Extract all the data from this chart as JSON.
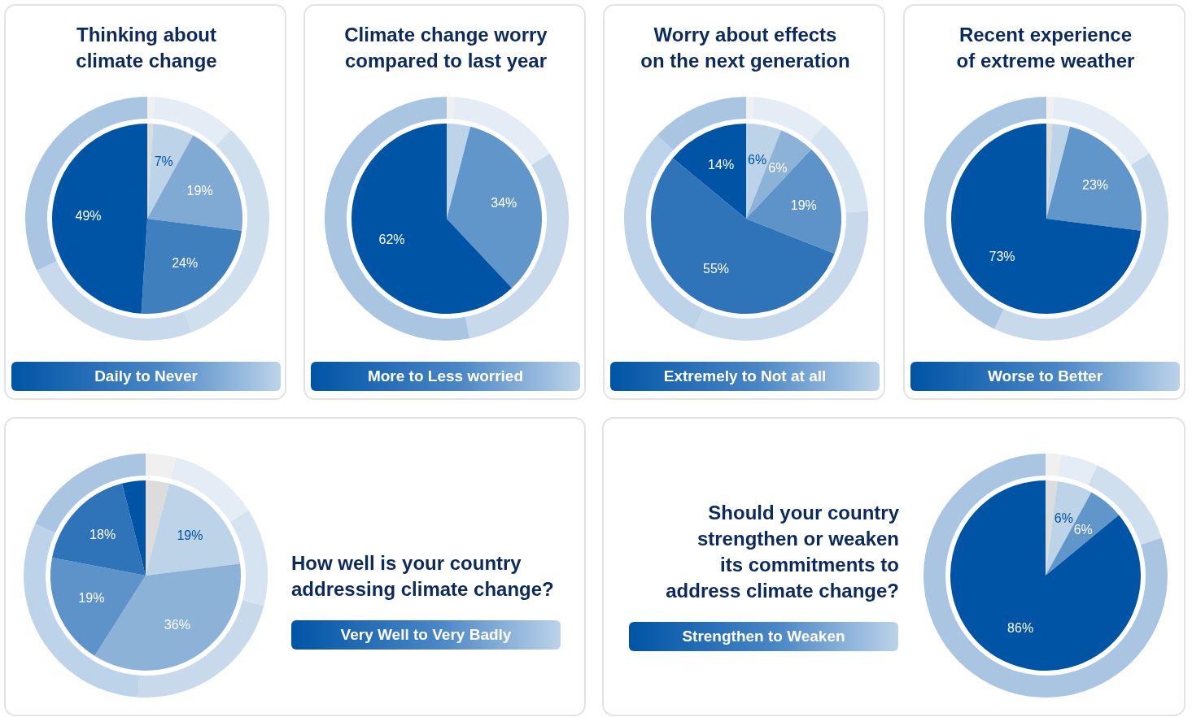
{
  "chart_data": [
    {
      "type": "pie",
      "title": "Thinking about climate change",
      "subtitle": "Daily to Never",
      "series": [
        {
          "values": [
            1,
            7,
            19,
            24,
            49
          ],
          "colors": [
            "#dcdcdc",
            "#bcd3e8",
            "#80a9d4",
            "#3f7fbe",
            "#0054a6"
          ],
          "value_labels": [
            null,
            "7%",
            "19%",
            "24%",
            "49%"
          ]
        },
        {
          "type": "donut",
          "values": [
            1,
            11,
            32,
            24,
            32
          ],
          "colors": [
            "#f0f0f0",
            "#e4edf6",
            "#d0dfee",
            "#c8d9ec",
            "#a9c5e2"
          ]
        }
      ]
    },
    {
      "type": "pie",
      "title": "Climate change worry compared to last year",
      "subtitle": "More to Less worried",
      "series": [
        {
          "values": [
            4,
            34,
            62
          ],
          "colors": [
            "#bcd3e8",
            "#6196ca",
            "#0054a6"
          ],
          "value_labels": [
            null,
            "34%",
            "62%"
          ]
        },
        {
          "type": "donut",
          "values": [
            1,
            15,
            31,
            53
          ],
          "colors": [
            "#f0f0f0",
            "#e4edf6",
            "#c8d9ec",
            "#a9c5e2"
          ]
        }
      ]
    },
    {
      "type": "pie",
      "title": "Worry about effects on the next generation",
      "subtitle": "Extremely to Not at all",
      "series": [
        {
          "values": [
            6,
            6,
            19,
            55,
            14
          ],
          "colors": [
            "#bcd3e8",
            "#8db2d8",
            "#5d93c8",
            "#2f73b8",
            "#0054a6"
          ],
          "value_labels": [
            "6%",
            "6%",
            "19%",
            "55%",
            "14%"
          ]
        },
        {
          "type": "donut",
          "values": [
            1,
            10,
            13,
            33,
            30,
            13
          ],
          "colors": [
            "#f0f0f0",
            "#e4edf6",
            "#d6e3f1",
            "#c8d9ec",
            "#bdd3e9",
            "#a9c5e2"
          ]
        }
      ]
    },
    {
      "type": "pie",
      "title": "Recent experience of extreme weather",
      "subtitle": "Worse to Better",
      "series": [
        {
          "values": [
            1,
            3,
            23,
            73
          ],
          "colors": [
            "#dcdcdc",
            "#bcd3e8",
            "#6196ca",
            "#0054a6"
          ],
          "value_labels": [
            null,
            null,
            "23%",
            "73%"
          ]
        },
        {
          "type": "donut",
          "values": [
            1,
            15,
            41,
            43
          ],
          "colors": [
            "#f0f0f0",
            "#e4edf6",
            "#c8d9ec",
            "#a9c5e2"
          ]
        }
      ]
    },
    {
      "type": "pie",
      "title": "How well is your country addressing climate change?",
      "subtitle": "Very Well to Very Badly",
      "series": [
        {
          "values": [
            4,
            19,
            36,
            19,
            18,
            4
          ],
          "colors": [
            "#dcdcdc",
            "#bcd3e8",
            "#8db2d8",
            "#5d93c8",
            "#2f73b8",
            "#0054a6"
          ],
          "value_labels": [
            null,
            "19%",
            "36%",
            "19%",
            "18%",
            null
          ]
        },
        {
          "type": "donut",
          "values": [
            4,
            12,
            13,
            22,
            31,
            18
          ],
          "colors": [
            "#f0f0f0",
            "#e4edf6",
            "#d6e3f1",
            "#c8d9ec",
            "#bdd3e9",
            "#a9c5e2"
          ]
        }
      ]
    },
    {
      "type": "pie",
      "title": "Should your country strengthen or weaken its commitments to address climate change?",
      "subtitle": "Strengthen to Weaken",
      "series": [
        {
          "values": [
            2,
            6,
            6,
            86
          ],
          "colors": [
            "#dcdcdc",
            "#bcd3e8",
            "#6196ca",
            "#0054a6"
          ],
          "value_labels": [
            null,
            "6%",
            "6%",
            "86%"
          ]
        },
        {
          "type": "donut",
          "values": [
            2,
            5,
            13,
            80
          ],
          "colors": [
            "#f0f0f0",
            "#e4edf6",
            "#d0dfee",
            "#a9c5e2"
          ]
        }
      ]
    }
  ]
}
